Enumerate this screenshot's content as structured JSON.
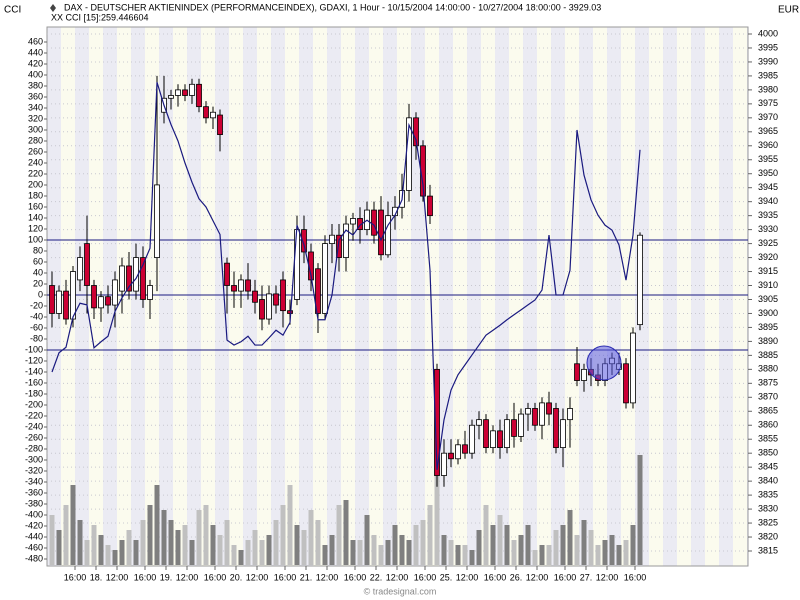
{
  "chart_data": {
    "type": "candlestick",
    "title": "DAX - DEUTSCHER AKTIENINDEX (PERFORMANCEINDEX), GDAXI, 1 Hour - 10/15/2004 14:00:00 - 10/27/2004 18:00:00 - 3929.03",
    "subtitle": "XX CCI [15]:259.446604",
    "left_axis_label": "CCI",
    "right_axis_label": "EUR",
    "footer": "© tradesignal.com",
    "categories": [
      null,
      null,
      "16:00",
      null,
      null,
      "18.",
      null,
      null,
      "12:00",
      null,
      null,
      null,
      "16:00",
      null,
      null,
      "19.",
      null,
      null,
      "12:00",
      null,
      null,
      null,
      "16:00",
      null,
      null,
      "20.",
      null,
      null,
      "12:00",
      null,
      null,
      null,
      "16:00",
      null,
      null,
      "21.",
      null,
      null,
      "12:00",
      null,
      null,
      null,
      "16:00",
      null,
      null,
      "22.",
      null,
      null,
      "12:00",
      null,
      null,
      null,
      "16:00",
      null,
      null,
      "25.",
      null,
      null,
      "12:00",
      null,
      null,
      null,
      "16:00",
      null,
      null,
      "26.",
      null,
      null,
      "12:00",
      null,
      null,
      null,
      "16:00",
      null,
      null,
      "27.",
      null,
      null,
      "12:00",
      null,
      null,
      null,
      "16:00",
      null,
      null
    ],
    "open": [
      3910,
      3900,
      3908,
      3898,
      3912,
      3925,
      3910,
      3902,
      3906,
      3903,
      3908,
      3917,
      3908,
      3920,
      3905,
      3920,
      3972,
      3977,
      3978,
      3980,
      3978,
      3982,
      3974,
      3970,
      3971,
      3918,
      3910,
      3908,
      3912,
      3908,
      3905,
      3898,
      3907,
      3912,
      3901,
      3905,
      3930,
      3922,
      3916,
      3900,
      3925,
      3928,
      3920,
      3932,
      3934,
      3930,
      3937,
      3937,
      3921,
      3935,
      3938,
      3944,
      3970,
      3960,
      3942,
      3880,
      3842,
      3850,
      3848,
      3853,
      3850,
      3860,
      3862,
      3852,
      3858,
      3852,
      3862,
      3856,
      3864,
      3866,
      3860,
      3868,
      3866,
      3852,
      3862,
      3882,
      3876,
      3880,
      3878,
      3876,
      3882,
      3880,
      3882,
      3868,
      3896
    ],
    "high": [
      3915,
      3910,
      3912,
      3917,
      3924,
      3935,
      3912,
      3908,
      3910,
      3915,
      3920,
      3922,
      3925,
      3924,
      3912,
      3985,
      3985,
      3980,
      3982,
      3982,
      3984,
      3984,
      3976,
      3974,
      3973,
      3920,
      3915,
      3914,
      3918,
      3912,
      3910,
      3910,
      3910,
      3915,
      3905,
      3935,
      3935,
      3925,
      3918,
      3928,
      3932,
      3932,
      3935,
      3936,
      3938,
      3940,
      3940,
      3942,
      3940,
      3942,
      3950,
      3975,
      3972,
      3962,
      3946,
      3882,
      3855,
      3855,
      3855,
      3858,
      3862,
      3865,
      3864,
      3860,
      3862,
      3864,
      3868,
      3866,
      3868,
      3868,
      3870,
      3872,
      3868,
      3866,
      3870,
      3888,
      3882,
      3884,
      3882,
      3884,
      3886,
      3886,
      3884,
      3895,
      3929
    ],
    "low": [
      3895,
      3898,
      3896,
      3895,
      3908,
      3900,
      3898,
      3897,
      3900,
      3895,
      3900,
      3905,
      3905,
      3902,
      3898,
      3908,
      3968,
      3973,
      3974,
      3976,
      3975,
      3972,
      3968,
      3966,
      3958,
      3900,
      3902,
      3902,
      3905,
      3900,
      3894,
      3896,
      3900,
      3895,
      3896,
      3903,
      3918,
      3908,
      3893,
      3898,
      3918,
      3915,
      3915,
      3926,
      3925,
      3928,
      3925,
      3919,
      3920,
      3930,
      3934,
      3940,
      3955,
      3940,
      3932,
      3838,
      3838,
      3845,
      3846,
      3848,
      3848,
      3855,
      3850,
      3850,
      3848,
      3850,
      3852,
      3854,
      3858,
      3858,
      3855,
      3860,
      3850,
      3845,
      3852,
      3874,
      3872,
      3874,
      3874,
      3874,
      3878,
      3878,
      3866,
      3866,
      3894
    ],
    "close": [
      3900,
      3908,
      3898,
      3915,
      3920,
      3910,
      3902,
      3906,
      3903,
      3912,
      3917,
      3908,
      3920,
      3905,
      3910,
      3946,
      3977,
      3978,
      3980,
      3978,
      3982,
      3974,
      3970,
      3972,
      3964,
      3910,
      3908,
      3912,
      3908,
      3904,
      3898,
      3907,
      3903,
      3901,
      3900,
      3930,
      3922,
      3912,
      3900,
      3925,
      3928,
      3920,
      3932,
      3934,
      3930,
      3937,
      3928,
      3921,
      3935,
      3938,
      3944,
      3970,
      3960,
      3942,
      3935,
      3842,
      3850,
      3848,
      3853,
      3850,
      3860,
      3862,
      3852,
      3858,
      3852,
      3862,
      3856,
      3864,
      3866,
      3860,
      3868,
      3864,
      3852,
      3862,
      3866,
      3876,
      3880,
      3878,
      3876,
      3882,
      3884,
      3882,
      3868,
      3893,
      3928
    ],
    "up_color": "#ffffff",
    "down_color": "#cc0033",
    "volume": [
      50,
      35,
      60,
      80,
      45,
      25,
      40,
      30,
      20,
      15,
      25,
      35,
      25,
      45,
      60,
      80,
      55,
      45,
      35,
      40,
      25,
      55,
      60,
      40,
      30,
      45,
      20,
      15,
      25,
      35,
      25,
      30,
      45,
      60,
      80,
      40,
      35,
      55,
      45,
      20,
      30,
      60,
      65,
      25,
      25,
      50,
      30,
      20,
      25,
      40,
      30,
      25,
      40,
      45,
      60,
      90,
      30,
      25,
      20,
      20,
      15,
      35,
      60,
      40,
      50,
      40,
      25,
      30,
      40,
      15,
      20,
      20,
      35,
      40,
      55,
      30,
      45,
      35,
      20,
      25,
      30,
      20,
      25,
      40,
      110
    ],
    "volume_up_color": "#7f7f7f",
    "volume_down_color": "#c0c0c0",
    "cci": {
      "values": [
        -140,
        -105,
        -95,
        -40,
        -15,
        -18,
        -96,
        -85,
        -75,
        -30,
        -5,
        15,
        30,
        55,
        85,
        387,
        345,
        310,
        280,
        240,
        205,
        175,
        160,
        135,
        110,
        -82,
        -91,
        -85,
        -75,
        -91,
        -91,
        -78,
        -64,
        -73,
        -50,
        127,
        91,
        36,
        -45,
        -45,
        0,
        100,
        118,
        109,
        127,
        136,
        127,
        100,
        127,
        145,
        173,
        309,
        282,
        200,
        45,
        -318,
        -227,
        -173,
        -145,
        -127,
        -109,
        -91,
        -73,
        -64,
        -55,
        -45,
        -36,
        -27,
        -18,
        -9,
        9,
        109,
        0,
        0,
        45,
        300,
        218,
        173,
        145,
        127,
        118,
        91,
        27,
        109,
        264
      ],
      "color": "#1a1a80"
    },
    "hlines": [
      100,
      0,
      -100
    ],
    "hline_color": "#1a1a80",
    "ylim": [
      -480,
      460
    ],
    "yticks": [
      460,
      440,
      420,
      400,
      380,
      360,
      340,
      320,
      300,
      280,
      260,
      240,
      220,
      200,
      180,
      160,
      140,
      120,
      100,
      80,
      60,
      40,
      20,
      0,
      -20,
      -40,
      -60,
      -80,
      -100,
      -120,
      -140,
      -160,
      -180,
      -200,
      -220,
      -240,
      -260,
      -280,
      -300,
      -320,
      -340,
      -360,
      -380,
      -400,
      -420,
      -440,
      -460,
      -480
    ],
    "y2lim": [
      3815,
      4000
    ],
    "y2ticks": [
      4000,
      3995,
      3990,
      3985,
      3980,
      3975,
      3970,
      3965,
      3960,
      3955,
      3950,
      3945,
      3940,
      3935,
      3930,
      3925,
      3920,
      3915,
      3910,
      3905,
      3900,
      3895,
      3890,
      3885,
      3880,
      3875,
      3870,
      3865,
      3860,
      3855,
      3850,
      3845,
      3840,
      3835,
      3830,
      3825,
      3820,
      3815
    ],
    "grid": true
  }
}
